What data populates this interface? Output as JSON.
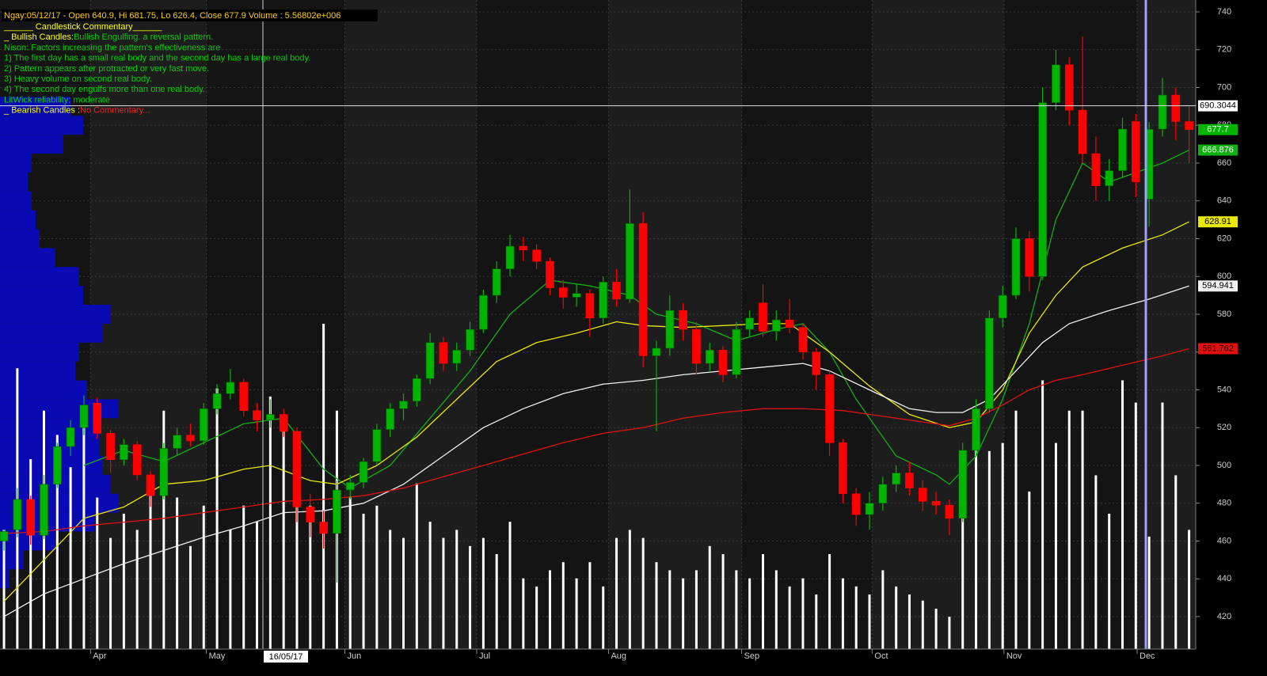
{
  "chart_data": {
    "type": "candlestick",
    "header": "Ngay:05/12/17 - Open 640.9, Hi 681.75, Lo 626.4, Close 677.9 Volume : 5.56802e+006",
    "commentary": [
      [
        {
          "text": "______ Candlestick Commentary______",
          "color": "#ffff00"
        }
      ],
      [
        {
          "text": "_ Bullish Candles:",
          "color": "#ffff00"
        },
        {
          "text": "Bullish Engulfing. a reversal pattern.",
          "color": "#00d000"
        }
      ],
      [
        {
          "text": "Nison: Factors increasing the pattern's effectiveness are",
          "color": "#00d000"
        }
      ],
      [
        {
          "text": "1) The first day has a small real body and the second day has a large real body.",
          "color": "#00d000"
        }
      ],
      [
        {
          "text": "2) Pattern appears after protracted or very fast move.",
          "color": "#00d000"
        }
      ],
      [
        {
          "text": "3) Heavy volume on second real body.",
          "color": "#00d000"
        }
      ],
      [
        {
          "text": "4) The second day engulfs more than one real body.",
          "color": "#00d000"
        }
      ],
      [
        {
          "text": "LitWick reliability: moderate",
          "color": "#00d000"
        }
      ],
      [
        {
          "text": "_ Bearish Candles :",
          "color": "#ffff00"
        },
        {
          "text": "No Commentary...",
          "color": "#ff2020"
        }
      ]
    ],
    "up_color": "#00b400",
    "down_color": "#ff0000",
    "volume_color": "#ffffff",
    "profile_color": "#0a0ab4",
    "ylim": [
      402.8,
      746.3
    ],
    "yticks": [
      420,
      440,
      460,
      480,
      500,
      520,
      540,
      560,
      580,
      600,
      620,
      640,
      660,
      680,
      700,
      720,
      740
    ],
    "xlim": [
      -0.3,
      89.5
    ],
    "xticks": [
      {
        "value": 6.5,
        "label": "Apr"
      },
      {
        "value": 15.2,
        "label": "May"
      },
      {
        "value": 25.6,
        "label": "Jun"
      },
      {
        "value": 35.5,
        "label": "Jul"
      },
      {
        "value": 45.4,
        "label": "Aug"
      },
      {
        "value": 55.4,
        "label": "Sep"
      },
      {
        "value": 65.2,
        "label": "Oct"
      },
      {
        "value": 75.1,
        "label": "Nov"
      },
      {
        "value": 85.1,
        "label": "Dec"
      }
    ],
    "grid": true,
    "candles": [
      [
        460,
        466,
        455,
        465
      ],
      [
        466,
        488,
        462,
        482
      ],
      [
        482,
        484,
        458,
        463
      ],
      [
        463,
        495,
        461,
        490
      ],
      [
        490,
        512,
        488,
        510
      ],
      [
        510,
        524,
        505,
        520
      ],
      [
        520,
        537,
        516,
        532
      ],
      [
        533,
        536,
        514,
        517
      ],
      [
        517,
        519,
        496,
        503
      ],
      [
        503,
        514,
        500,
        511
      ],
      [
        511,
        513,
        492,
        495
      ],
      [
        495,
        497,
        478,
        484
      ],
      [
        484,
        512,
        482,
        509
      ],
      [
        509,
        520,
        505,
        516
      ],
      [
        516,
        522,
        510,
        513
      ],
      [
        513,
        533,
        511,
        530
      ],
      [
        530,
        543,
        527,
        538
      ],
      [
        538,
        551,
        535,
        544
      ],
      [
        544,
        546,
        526,
        529
      ],
      [
        529,
        533,
        518,
        524
      ],
      [
        524,
        535,
        520,
        527
      ],
      [
        527,
        530,
        515,
        518
      ],
      [
        518,
        520,
        470,
        478
      ],
      [
        478,
        485,
        462,
        470
      ],
      [
        470,
        476,
        456,
        464
      ],
      [
        464,
        492,
        438,
        487
      ],
      [
        487,
        495,
        482,
        491
      ],
      [
        491,
        504,
        488,
        502
      ],
      [
        502,
        522,
        500,
        519
      ],
      [
        519,
        533,
        515,
        530
      ],
      [
        530,
        538,
        524,
        534
      ],
      [
        534,
        548,
        531,
        546
      ],
      [
        546,
        570,
        543,
        565
      ],
      [
        565,
        568,
        550,
        554
      ],
      [
        554,
        565,
        550,
        561
      ],
      [
        561,
        576,
        558,
        572
      ],
      [
        572,
        593,
        570,
        590
      ],
      [
        590,
        608,
        586,
        604
      ],
      [
        604,
        622,
        600,
        616
      ],
      [
        616,
        621,
        608,
        614
      ],
      [
        614,
        617,
        604,
        608
      ],
      [
        608,
        610,
        590,
        594
      ],
      [
        594,
        598,
        583,
        589
      ],
      [
        589,
        596,
        584,
        591
      ],
      [
        591,
        593,
        568,
        578
      ],
      [
        578,
        600,
        575,
        597
      ],
      [
        597,
        604,
        584,
        588
      ],
      [
        588,
        646,
        586,
        628
      ],
      [
        628,
        634,
        552,
        558
      ],
      [
        558,
        566,
        518,
        562
      ],
      [
        562,
        590,
        558,
        582
      ],
      [
        582,
        586,
        566,
        572
      ],
      [
        572,
        576,
        548,
        554
      ],
      [
        554,
        565,
        550,
        561
      ],
      [
        561,
        563,
        544,
        548
      ],
      [
        548,
        576,
        546,
        572
      ],
      [
        572,
        582,
        568,
        578
      ],
      [
        586,
        596,
        568,
        571
      ],
      [
        571,
        582,
        566,
        577
      ],
      [
        577,
        588,
        570,
        573
      ],
      [
        573,
        575,
        556,
        560
      ],
      [
        560,
        562,
        540,
        548
      ],
      [
        548,
        550,
        505,
        512
      ],
      [
        512,
        514,
        480,
        485
      ],
      [
        485,
        488,
        468,
        474
      ],
      [
        474,
        486,
        466,
        480
      ],
      [
        480,
        494,
        476,
        490
      ],
      [
        490,
        500,
        486,
        496
      ],
      [
        496,
        502,
        484,
        488
      ],
      [
        488,
        492,
        476,
        481
      ],
      [
        481,
        486,
        474,
        479
      ],
      [
        479,
        482,
        463,
        472
      ],
      [
        472,
        512,
        470,
        508
      ],
      [
        508,
        535,
        505,
        530
      ],
      [
        530,
        582,
        528,
        578
      ],
      [
        578,
        595,
        573,
        590
      ],
      [
        590,
        626,
        588,
        620
      ],
      [
        620,
        624,
        592,
        600
      ],
      [
        600,
        700,
        598,
        692
      ],
      [
        692,
        720,
        688,
        712
      ],
      [
        712,
        716,
        680,
        688
      ],
      [
        688,
        727,
        660,
        665
      ],
      [
        665,
        674,
        640,
        648
      ],
      [
        648,
        662,
        640,
        656
      ],
      [
        656,
        684,
        652,
        678
      ],
      [
        682,
        686,
        642,
        650
      ],
      [
        640.9,
        681.75,
        626.4,
        677.9
      ],
      [
        678,
        705,
        674,
        696
      ],
      [
        696,
        700,
        672,
        682
      ],
      [
        682,
        690,
        660,
        677.7
      ]
    ],
    "volume": [
      5900000,
      13900000,
      9400000,
      11800000,
      10600000,
      9000000,
      11800000,
      7500000,
      5500000,
      6700000,
      5900000,
      7800000,
      11800000,
      7500000,
      5100000,
      7100000,
      12900000,
      5900000,
      7100000,
      6300000,
      12500000,
      11000000,
      9400000,
      7100000,
      16100000,
      11800000,
      7500000,
      6700000,
      7100000,
      5900000,
      5500000,
      8200000,
      6300000,
      5500000,
      5900000,
      5100000,
      5500000,
      4700000,
      6300000,
      3500000,
      3100000,
      3900000,
      4300000,
      3500000,
      4300000,
      3100000,
      5500000,
      5900000,
      5500000,
      4300000,
      3900000,
      3500000,
      3900000,
      5100000,
      4700000,
      3900000,
      3500000,
      4700000,
      3900000,
      3100000,
      3500000,
      2700000,
      4700000,
      3500000,
      3100000,
      2700000,
      3900000,
      3100000,
      2700000,
      2400000,
      2000000,
      1600000,
      7800000,
      11800000,
      9800000,
      10200000,
      11800000,
      7800000,
      13300000,
      10200000,
      11800000,
      11800000,
      8600000,
      6700000,
      13300000,
      12200000,
      5568020,
      12200000,
      8600000,
      5900000
    ],
    "profile": {
      "prices": [
        440,
        450,
        460,
        470,
        480,
        490,
        500,
        510,
        520,
        530,
        540,
        550,
        560,
        570,
        580,
        590,
        600,
        610,
        620,
        630,
        640,
        650,
        660,
        670,
        680,
        690
      ],
      "values": [
        12,
        30,
        70,
        120,
        150,
        140,
        130,
        125,
        125,
        150,
        110,
        95,
        100,
        130,
        140,
        105,
        100,
        70,
        50,
        45,
        40,
        35,
        40,
        80,
        105,
        90
      ]
    },
    "series": [
      {
        "color": "#10b010",
        "x": [
          6,
          9,
          12,
          15,
          18,
          21,
          24,
          26,
          29,
          32,
          35,
          38,
          41,
          44,
          47,
          49,
          52,
          55,
          58,
          60,
          62,
          64,
          67,
          70,
          71,
          73,
          75,
          77,
          79,
          81,
          83,
          85,
          87,
          89
        ],
        "values": [
          500,
          508,
          502,
          512,
          522,
          525,
          498,
          488,
          500,
          525,
          550,
          580,
          598,
          595,
          590,
          580,
          575,
          566,
          572,
          575,
          560,
          535,
          505,
          495,
          490,
          505,
          535,
          575,
          630,
          660,
          650,
          655,
          660,
          666.876
        ]
      },
      {
        "color": "#e8e800",
        "x": [
          0,
          3,
          6,
          9,
          12,
          15,
          18,
          20,
          23,
          25,
          28,
          31,
          34,
          37,
          40,
          43,
          46,
          48,
          51,
          54,
          57,
          59,
          62,
          65,
          68,
          71,
          73,
          75,
          77,
          79,
          81,
          84,
          87,
          89
        ],
        "values": [
          428,
          450,
          472,
          478,
          490,
          492,
          498,
          500,
          492,
          490,
          500,
          515,
          535,
          555,
          565,
          570,
          576,
          574,
          573,
          574,
          575,
          575,
          560,
          542,
          527,
          520,
          523,
          540,
          570,
          590,
          605,
          615,
          622,
          628.91
        ]
      },
      {
        "color": "#f0f0f0",
        "x": [
          0,
          3,
          6,
          9,
          12,
          15,
          18,
          21,
          24,
          27,
          30,
          33,
          36,
          39,
          42,
          45,
          48,
          51,
          54,
          57,
          60,
          62,
          65,
          68,
          70,
          72,
          74,
          76,
          78,
          80,
          83,
          86,
          89
        ],
        "values": [
          420,
          432,
          440,
          448,
          455,
          462,
          468,
          475,
          476,
          480,
          490,
          505,
          520,
          530,
          538,
          543,
          545,
          548,
          550,
          552,
          554,
          550,
          540,
          530,
          528,
          528,
          535,
          550,
          565,
          575,
          582,
          588,
          594.941
        ]
      },
      {
        "color": "#e01010",
        "x": [
          0,
          3,
          6,
          9,
          12,
          15,
          18,
          21,
          24,
          27,
          30,
          33,
          36,
          39,
          42,
          45,
          48,
          51,
          54,
          57,
          60,
          63,
          66,
          69,
          71,
          73,
          75,
          77,
          79,
          81,
          84,
          87,
          89
        ],
        "values": [
          464,
          465,
          468,
          470,
          472,
          475,
          478,
          481,
          482,
          484,
          488,
          494,
          500,
          506,
          512,
          517,
          520,
          525,
          528,
          530,
          530,
          529,
          526,
          523,
          521,
          525,
          532,
          540,
          545,
          548,
          553,
          558,
          561.762
        ]
      }
    ],
    "crosshair": {
      "price": 690.3044,
      "date": "16/05/17"
    }
  }
}
